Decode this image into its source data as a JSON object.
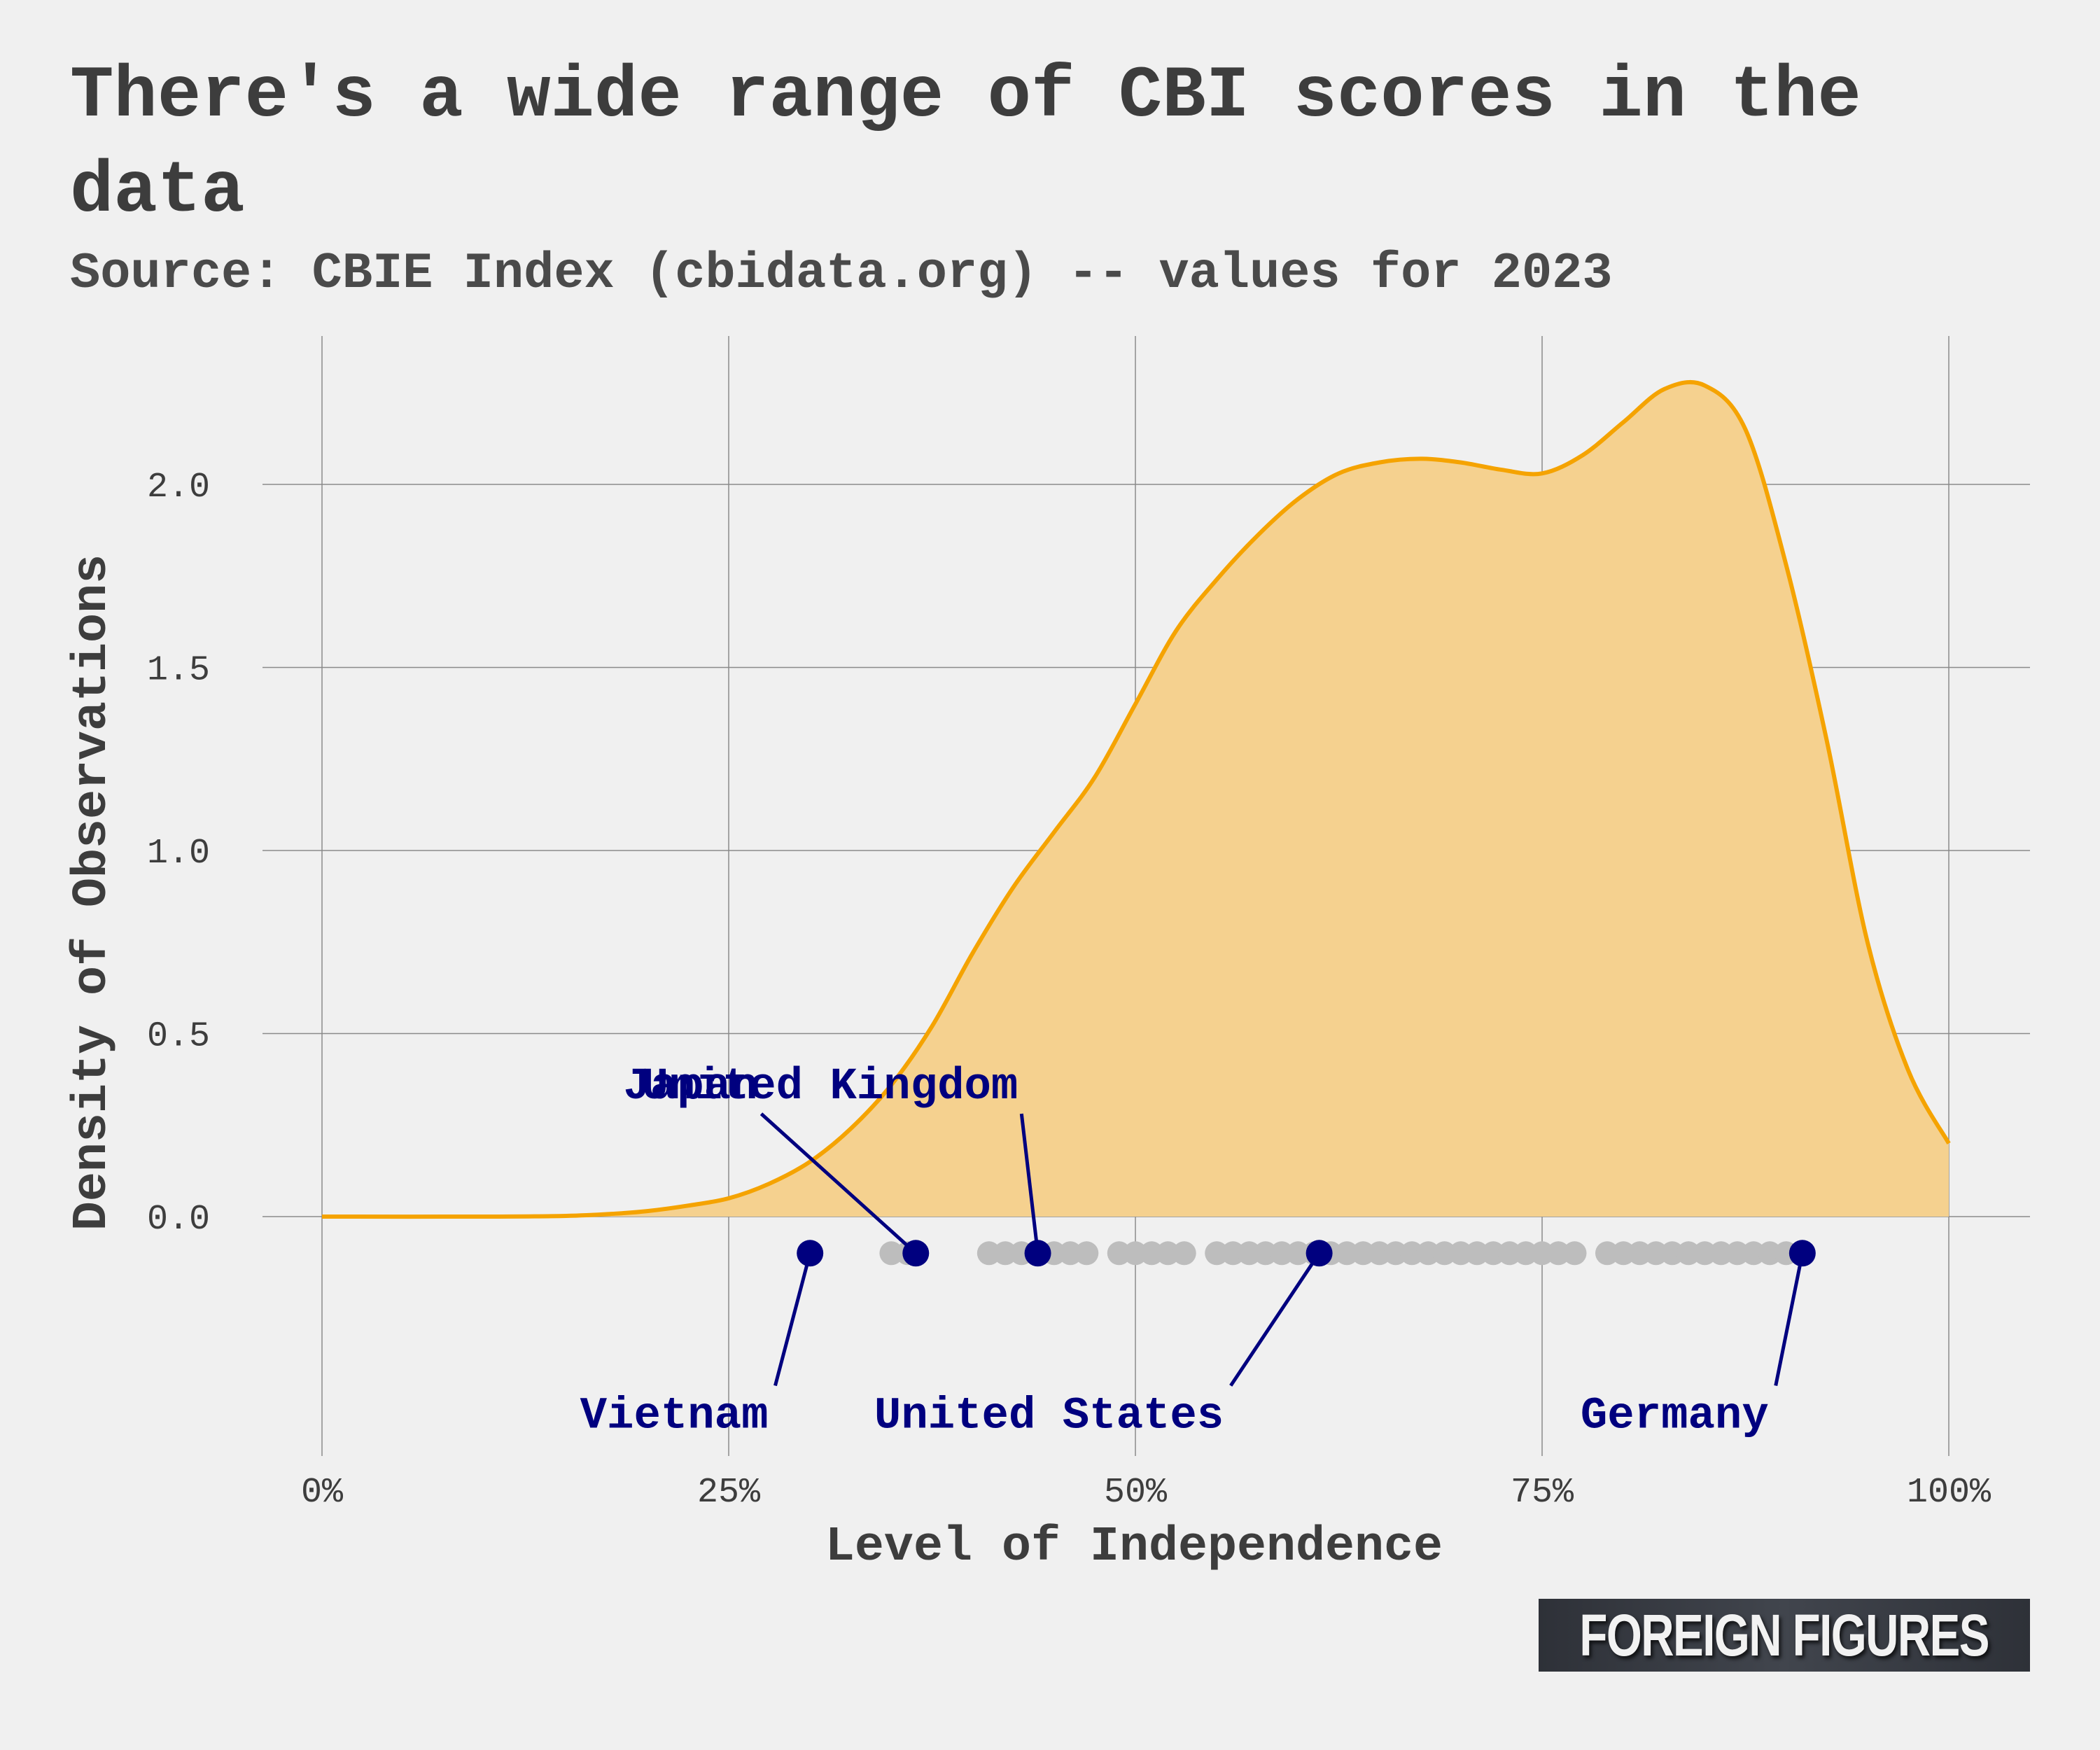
{
  "header": {
    "title": "There's a wide range of CBI scores in the data",
    "subtitle": "Source: CBIE Index (cbidata.org) -- values for 2023"
  },
  "logo": {
    "text": "FOREIGN FIGURES"
  },
  "colors": {
    "density_line": "#f5a300",
    "density_fill": "#f5d18f",
    "highlight": "#00007f",
    "observation": "#bdbdbd",
    "grid": "#8a8a8a",
    "text": "#3d3d3d"
  },
  "chart_data": {
    "type": "area",
    "xlabel": "Level of Independence",
    "ylabel": "Density of Observations",
    "xlim": [
      0,
      1
    ],
    "ylim": [
      -0.6,
      2.4
    ],
    "grid": true,
    "x_ticks": [
      {
        "value": 0,
        "label": "0%"
      },
      {
        "value": 0.25,
        "label": "25%"
      },
      {
        "value": 0.5,
        "label": "50%"
      },
      {
        "value": 0.75,
        "label": "75%"
      },
      {
        "value": 1,
        "label": "100%"
      }
    ],
    "y_ticks": [
      {
        "value": 0,
        "label": "0.0"
      },
      {
        "value": 0.5,
        "label": "0.5"
      },
      {
        "value": 1,
        "label": "1.0"
      },
      {
        "value": 1.5,
        "label": "1.5"
      },
      {
        "value": 2,
        "label": "2.0"
      }
    ],
    "density": {
      "x": [
        0,
        0.1,
        0.15,
        0.18,
        0.2,
        0.225,
        0.25,
        0.275,
        0.3,
        0.325,
        0.35,
        0.375,
        0.4,
        0.425,
        0.45,
        0.475,
        0.5,
        0.525,
        0.55,
        0.575,
        0.6,
        0.625,
        0.65,
        0.675,
        0.7,
        0.725,
        0.75,
        0.775,
        0.8,
        0.825,
        0.85,
        0.875,
        0.9,
        0.925,
        0.95,
        0.975,
        1.0
      ],
      "y": [
        0.0,
        0.0,
        0.002,
        0.008,
        0.015,
        0.03,
        0.05,
        0.09,
        0.15,
        0.24,
        0.36,
        0.52,
        0.72,
        0.9,
        1.05,
        1.2,
        1.4,
        1.6,
        1.74,
        1.86,
        1.96,
        2.03,
        2.06,
        2.07,
        2.06,
        2.04,
        2.03,
        2.08,
        2.17,
        2.26,
        2.27,
        2.15,
        1.78,
        1.3,
        0.75,
        0.4,
        0.2
      ]
    },
    "observation_y": -0.1,
    "observations": [
      0.35,
      0.36,
      0.365,
      0.41,
      0.42,
      0.43,
      0.44,
      0.45,
      0.46,
      0.47,
      0.49,
      0.5,
      0.51,
      0.52,
      0.53,
      0.55,
      0.56,
      0.57,
      0.58,
      0.59,
      0.6,
      0.61,
      0.62,
      0.63,
      0.64,
      0.65,
      0.66,
      0.67,
      0.68,
      0.69,
      0.7,
      0.71,
      0.72,
      0.73,
      0.74,
      0.75,
      0.76,
      0.77,
      0.79,
      0.8,
      0.81,
      0.82,
      0.83,
      0.84,
      0.85,
      0.86,
      0.87,
      0.88,
      0.89,
      0.9,
      0.91
    ],
    "highlights": [
      {
        "name": "Vietnam",
        "x": 0.3,
        "label_x": 0.27,
        "label_y": -0.5
      },
      {
        "name": "Japan",
        "x": 0.365,
        "label_x": 0.27,
        "label_y": 0.3
      },
      {
        "name": "United Kingdom",
        "x": 0.44,
        "label_x": 0.43,
        "label_y": 0.3
      },
      {
        "name": "United States",
        "x": 0.613,
        "label_x": 0.55,
        "label_y": -0.5
      },
      {
        "name": "Germany",
        "x": 0.91,
        "label_x": 0.885,
        "label_y": -0.5
      }
    ]
  }
}
